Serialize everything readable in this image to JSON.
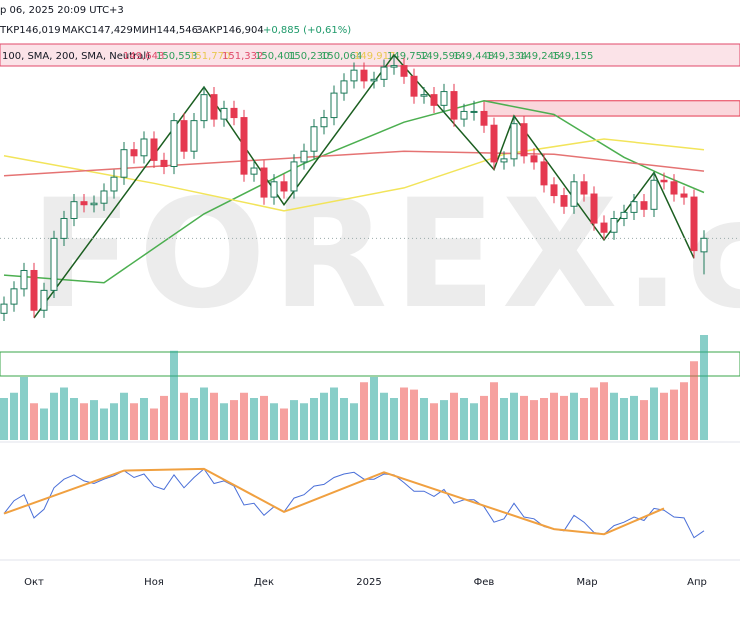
{
  "header": {
    "time": "р 06, 2025 20:09 UTC+3",
    "ohlc": [
      "ТКР146,019",
      "МАКС147,429",
      "МИН144,546",
      "ЗАКР146,904"
    ],
    "change": "+0,885 (+0,61%)",
    "indicator": "100, SMA, 200, SMA, Neutral)",
    "indicator_values": [
      {
        "text": "149,643",
        "color": "#e04a6a"
      },
      {
        "text": "150,553",
        "color": "#2e9e5a"
      },
      {
        "text": "151,770",
        "color": "#e8c850"
      },
      {
        "text": "151,332",
        "color": "#e04a6a"
      },
      {
        "text": "150,401",
        "color": "#2e9e5a"
      },
      {
        "text": "150,230",
        "color": "#2e9e5a"
      },
      {
        "text": "150,064",
        "color": "#2e9e5a"
      },
      {
        "text": "149,917",
        "color": "#e8c850"
      },
      {
        "text": "149,752",
        "color": "#2e9e5a"
      },
      {
        "text": "149,596",
        "color": "#2e9e5a"
      },
      {
        "text": "149,448",
        "color": "#2e9e5a"
      },
      {
        "text": "149,334",
        "color": "#2e9e5a"
      },
      {
        "text": "149,245",
        "color": "#2e9e5a"
      },
      {
        "text": "149,155",
        "color": "#2e9e5a"
      }
    ]
  },
  "chart_data": {
    "type": "candlestick",
    "watermark": "FOREX.c",
    "x_labels": [
      "Окт",
      "Ноя",
      "Дек",
      "2025",
      "Фев",
      "Мар",
      "Апр"
    ],
    "ylim": [
      139.6,
      160.2
    ],
    "up_color": "#1e7a5a",
    "down_color": "#e53950",
    "open": [
      142.0,
      142.6,
      143.6,
      144.8,
      142.2,
      143.5,
      146.9,
      148.2,
      149.3,
      149.1,
      149.2,
      150.0,
      150.9,
      152.7,
      152.3,
      153.4,
      152.0,
      151.6,
      154.6,
      152.6,
      154.6,
      156.3,
      154.7,
      155.4,
      154.8,
      151.1,
      151.5,
      149.6,
      150.6,
      150.0,
      151.9,
      152.6,
      154.2,
      154.8,
      156.4,
      157.2,
      157.9,
      157.2,
      157.3,
      158.1,
      158.2,
      157.5,
      156.2,
      156.3,
      155.6,
      156.5,
      154.7,
      155.2,
      155.2,
      154.3,
      151.9,
      152.1,
      154.4,
      152.3,
      151.9,
      150.4,
      149.7,
      149.0,
      150.6,
      149.8,
      147.9,
      147.3,
      148.2,
      148.6,
      149.3,
      148.8,
      150.7,
      150.6,
      149.8,
      149.6,
      146.019
    ],
    "high": [
      143.1,
      144.1,
      145.3,
      145.3,
      144.0,
      147.4,
      148.7,
      149.8,
      149.8,
      149.7,
      150.5,
      151.4,
      153.2,
      153.2,
      153.9,
      153.9,
      152.5,
      155.1,
      155.1,
      155.1,
      156.8,
      156.8,
      155.9,
      155.9,
      155.3,
      152.0,
      152.0,
      151.1,
      151.1,
      152.4,
      153.1,
      154.7,
      155.3,
      156.9,
      157.7,
      158.4,
      158.4,
      157.8,
      158.6,
      158.9,
      158.7,
      158.0,
      156.8,
      156.8,
      157.0,
      157.0,
      155.7,
      155.9,
      155.8,
      154.8,
      152.6,
      154.9,
      154.9,
      152.8,
      152.4,
      150.9,
      150.2,
      151.1,
      151.1,
      150.3,
      148.4,
      148.7,
      149.1,
      149.8,
      149.8,
      151.2,
      151.2,
      151.1,
      150.3,
      150.1,
      147.429
    ],
    "low": [
      141.5,
      142.1,
      143.1,
      141.7,
      141.7,
      143.0,
      146.4,
      147.7,
      148.6,
      148.6,
      148.7,
      149.5,
      150.4,
      151.8,
      151.8,
      151.5,
      151.1,
      151.1,
      152.1,
      152.1,
      154.1,
      154.2,
      154.2,
      154.3,
      150.6,
      150.6,
      149.1,
      149.1,
      149.5,
      149.5,
      151.4,
      152.1,
      153.7,
      154.3,
      155.9,
      156.7,
      156.7,
      156.7,
      156.8,
      157.6,
      157.0,
      155.7,
      155.7,
      155.1,
      155.1,
      154.2,
      154.2,
      154.6,
      153.8,
      151.4,
      151.4,
      151.6,
      151.8,
      151.4,
      149.9,
      149.2,
      148.5,
      148.5,
      149.3,
      147.4,
      146.8,
      146.8,
      147.7,
      148.1,
      148.3,
      148.3,
      150.1,
      149.3,
      149.1,
      145.6,
      144.546
    ],
    "close": [
      142.6,
      143.6,
      144.8,
      142.2,
      143.5,
      146.9,
      148.2,
      149.3,
      149.1,
      149.2,
      150.0,
      150.9,
      152.7,
      152.3,
      153.4,
      152.0,
      151.6,
      154.6,
      152.6,
      154.6,
      156.3,
      154.7,
      155.4,
      154.8,
      151.1,
      151.5,
      149.6,
      150.6,
      150.0,
      151.9,
      152.6,
      154.2,
      154.8,
      156.4,
      157.2,
      157.9,
      157.2,
      157.3,
      158.1,
      158.2,
      157.5,
      156.2,
      156.3,
      155.6,
      156.5,
      154.7,
      155.2,
      155.2,
      154.3,
      151.9,
      152.1,
      154.4,
      152.3,
      151.9,
      150.4,
      149.7,
      149.0,
      150.6,
      149.8,
      147.9,
      147.3,
      148.2,
      148.6,
      149.3,
      148.8,
      150.7,
      150.6,
      149.8,
      149.6,
      146.1,
      146.904
    ],
    "overlays": [
      {
        "color": "#4caf50",
        "x": [
          0,
          10,
          20,
          30,
          40,
          48,
          55,
          62,
          66,
          70
        ],
        "values": [
          144.5,
          144.0,
          148.5,
          151.8,
          154.5,
          155.9,
          155.0,
          152.2,
          151.0,
          149.9
        ]
      },
      {
        "color": "#f2e45a",
        "x": [
          0,
          15,
          28,
          40,
          50,
          60,
          70
        ],
        "values": [
          152.3,
          150.5,
          148.7,
          150.2,
          152.4,
          153.4,
          152.7
        ]
      },
      {
        "color": "#e57373",
        "x": [
          0,
          20,
          40,
          55,
          70
        ],
        "values": [
          151.0,
          151.8,
          152.6,
          152.4,
          151.3
        ]
      },
      {
        "color": "#1b5e20",
        "x": [
          3,
          20,
          28,
          39,
          49,
          51,
          60,
          65,
          69
        ],
        "values": [
          141.7,
          156.8,
          149.1,
          158.9,
          151.4,
          154.9,
          146.8,
          151.2,
          145.6
        ]
      }
    ],
    "zone": {
      "x": [
        48,
        70
      ],
      "values": [
        155.9,
        154.9
      ],
      "color": "#e53950"
    },
    "volume": {
      "ylim": [
        0,
        100
      ],
      "values": [
        40,
        45,
        60,
        35,
        30,
        45,
        50,
        40,
        35,
        38,
        30,
        35,
        45,
        35,
        40,
        30,
        42,
        85,
        45,
        40,
        50,
        45,
        35,
        38,
        45,
        40,
        42,
        35,
        30,
        38,
        35,
        40,
        45,
        50,
        40,
        35,
        55,
        60,
        45,
        40,
        50,
        48,
        40,
        35,
        38,
        45,
        40,
        35,
        42,
        55,
        40,
        45,
        42,
        38,
        40,
        45,
        42,
        45,
        40,
        50,
        55,
        45,
        40,
        42,
        38,
        50,
        45,
        48,
        55,
        75,
        100
      ]
    },
    "oscillator": {
      "ylim": [
        0,
        100
      ],
      "color": "#4a6fd8",
      "values": [
        40,
        55,
        62,
        35,
        45,
        70,
        80,
        85,
        78,
        75,
        80,
        84,
        90,
        82,
        86,
        72,
        68,
        85,
        70,
        82,
        92,
        75,
        78,
        72,
        50,
        52,
        38,
        48,
        42,
        58,
        62,
        72,
        74,
        82,
        86,
        88,
        80,
        80,
        86,
        85,
        76,
        66,
        66,
        60,
        68,
        52,
        56,
        56,
        48,
        30,
        34,
        52,
        36,
        34,
        25,
        22,
        20,
        38,
        30,
        18,
        16,
        26,
        30,
        36,
        32,
        46,
        44,
        36,
        35,
        12,
        20
      ],
      "zigzag": {
        "color": "#f0a040",
        "x": [
          0,
          12,
          20,
          28,
          38,
          55,
          60,
          66
        ],
        "values": [
          40,
          90,
          92,
          42,
          88,
          22,
          16,
          46
        ]
      }
    }
  }
}
